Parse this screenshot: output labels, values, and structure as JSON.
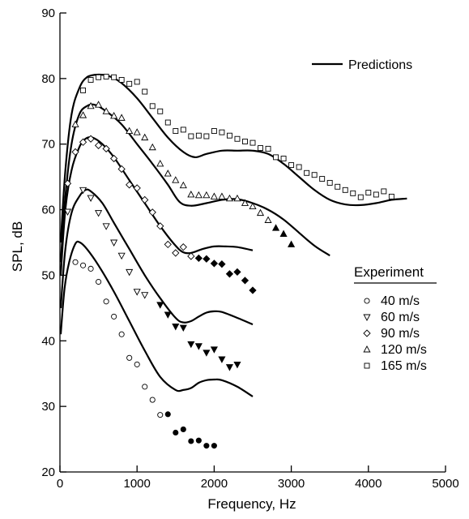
{
  "chart_data": {
    "type": "scatter",
    "xlabel": "Frequency,   Hz",
    "ylabel": "SPL,   dB",
    "xlim": [
      0,
      5000
    ],
    "ylim": [
      20,
      90
    ],
    "xticks": [
      0,
      1000,
      2000,
      3000,
      4000,
      5000
    ],
    "yticks": [
      20,
      30,
      40,
      50,
      60,
      70,
      80,
      90
    ],
    "grid": false,
    "legend": {
      "predictions_label": "Predictions",
      "experiment_title": "Experiment",
      "entries": [
        "40 m/s",
        "60 m/s",
        "90 m/s",
        "120 m/s",
        "165 m/s"
      ],
      "placement": "right"
    },
    "predictions": [
      {
        "points": [
          [
            10,
            41
          ],
          [
            60,
            48
          ],
          [
            120,
            52
          ],
          [
            200,
            54.8
          ],
          [
            260,
            55
          ],
          [
            350,
            54
          ],
          [
            500,
            51.5
          ],
          [
            700,
            47.5
          ],
          [
            900,
            43
          ],
          [
            1100,
            38.5
          ],
          [
            1300,
            34.5
          ],
          [
            1500,
            32.5
          ],
          [
            1600,
            32.5
          ],
          [
            1700,
            32.8
          ],
          [
            1800,
            33.6
          ],
          [
            1900,
            34
          ],
          [
            2000,
            34.1
          ],
          [
            2100,
            34
          ],
          [
            2300,
            33
          ],
          [
            2500,
            31.5
          ]
        ]
      },
      {
        "points": [
          [
            10,
            45
          ],
          [
            70,
            54
          ],
          [
            150,
            59.5
          ],
          [
            250,
            62
          ],
          [
            330,
            63
          ],
          [
            400,
            62.8
          ],
          [
            550,
            61
          ],
          [
            700,
            58
          ],
          [
            900,
            54
          ],
          [
            1100,
            50
          ],
          [
            1300,
            46.5
          ],
          [
            1500,
            43.5
          ],
          [
            1600,
            42.8
          ],
          [
            1700,
            43
          ],
          [
            1800,
            43.7
          ],
          [
            1900,
            44.3
          ],
          [
            2000,
            44.5
          ],
          [
            2100,
            44.4
          ],
          [
            2300,
            43.5
          ],
          [
            2500,
            42.5
          ]
        ]
      },
      {
        "points": [
          [
            10,
            50
          ],
          [
            70,
            60
          ],
          [
            150,
            66
          ],
          [
            250,
            69.5
          ],
          [
            330,
            70.8
          ],
          [
            420,
            71
          ],
          [
            550,
            70
          ],
          [
            700,
            68
          ],
          [
            900,
            64.5
          ],
          [
            1100,
            61
          ],
          [
            1300,
            57.5
          ],
          [
            1500,
            54.5
          ],
          [
            1600,
            53.5
          ],
          [
            1700,
            53.4
          ],
          [
            1850,
            54
          ],
          [
            2000,
            54.4
          ],
          [
            2150,
            54.4
          ],
          [
            2300,
            54.3
          ],
          [
            2500,
            53.8
          ]
        ]
      },
      {
        "points": [
          [
            10,
            52
          ],
          [
            70,
            62
          ],
          [
            150,
            70
          ],
          [
            250,
            74.5
          ],
          [
            350,
            75.8
          ],
          [
            450,
            76
          ],
          [
            600,
            75
          ],
          [
            800,
            73
          ],
          [
            1000,
            70
          ],
          [
            1200,
            67
          ],
          [
            1400,
            63.8
          ],
          [
            1550,
            61.2
          ],
          [
            1700,
            60.6
          ],
          [
            1900,
            61
          ],
          [
            2100,
            61.5
          ],
          [
            2300,
            61.6
          ],
          [
            2500,
            61
          ],
          [
            2700,
            60
          ],
          [
            2900,
            58.5
          ],
          [
            3100,
            56.5
          ],
          [
            3300,
            54.5
          ],
          [
            3500,
            53
          ]
        ]
      },
      {
        "points": [
          [
            10,
            55
          ],
          [
            70,
            66
          ],
          [
            150,
            74.5
          ],
          [
            250,
            78.5
          ],
          [
            350,
            80.2
          ],
          [
            500,
            80.6
          ],
          [
            650,
            80.3
          ],
          [
            800,
            79.3
          ],
          [
            1000,
            77
          ],
          [
            1200,
            74
          ],
          [
            1400,
            71
          ],
          [
            1600,
            68.8
          ],
          [
            1750,
            68
          ],
          [
            1900,
            68.5
          ],
          [
            2100,
            69
          ],
          [
            2300,
            69
          ],
          [
            2500,
            69
          ],
          [
            2700,
            68.5
          ],
          [
            2900,
            67
          ],
          [
            3100,
            65
          ],
          [
            3300,
            63
          ],
          [
            3500,
            61.5
          ],
          [
            3700,
            60.8
          ],
          [
            3900,
            60.7
          ],
          [
            4100,
            61
          ],
          [
            4300,
            61.5
          ],
          [
            4500,
            61.7
          ]
        ]
      }
    ],
    "series": [
      {
        "name": "40 m/s",
        "marker": "circle",
        "open": [
          [
            200,
            52
          ],
          [
            300,
            51.5
          ],
          [
            400,
            51
          ],
          [
            500,
            49
          ],
          [
            600,
            46
          ],
          [
            700,
            43.7
          ],
          [
            800,
            41
          ],
          [
            900,
            37.4
          ],
          [
            1000,
            36.4
          ],
          [
            1100,
            33
          ],
          [
            1200,
            31
          ],
          [
            1300,
            28.7
          ]
        ],
        "filled": [
          [
            1400,
            28.8
          ],
          [
            1500,
            26
          ],
          [
            1600,
            26.5
          ],
          [
            1700,
            24.7
          ],
          [
            1800,
            24.8
          ],
          [
            1900,
            24
          ],
          [
            2000,
            24
          ]
        ]
      },
      {
        "name": "60 m/s",
        "marker": "tri-down",
        "open": [
          [
            100,
            59.7
          ],
          [
            300,
            63
          ],
          [
            400,
            61.8
          ],
          [
            500,
            59.5
          ],
          [
            600,
            57.5
          ],
          [
            700,
            55
          ],
          [
            800,
            53
          ],
          [
            900,
            50.5
          ],
          [
            1000,
            47.5
          ],
          [
            1100,
            47
          ]
        ],
        "filled": [
          [
            1300,
            45.5
          ],
          [
            1400,
            44
          ],
          [
            1500,
            42.2
          ],
          [
            1600,
            42
          ],
          [
            1700,
            39.5
          ],
          [
            1800,
            39.2
          ],
          [
            1900,
            38.2
          ],
          [
            2000,
            38.7
          ],
          [
            2100,
            37.2
          ],
          [
            2200,
            36
          ],
          [
            2300,
            36.4
          ]
        ]
      },
      {
        "name": "90 m/s",
        "marker": "diamond",
        "open": [
          [
            100,
            64
          ],
          [
            200,
            68.8
          ],
          [
            300,
            70.3
          ],
          [
            400,
            70.8
          ],
          [
            500,
            69.8
          ],
          [
            600,
            69.3
          ],
          [
            700,
            67.8
          ],
          [
            800,
            66.2
          ],
          [
            900,
            63.8
          ],
          [
            1000,
            63.3
          ],
          [
            1100,
            61.5
          ],
          [
            1200,
            59.6
          ],
          [
            1300,
            57.5
          ],
          [
            1400,
            54.7
          ],
          [
            1500,
            53.4
          ],
          [
            1600,
            54.3
          ],
          [
            1700,
            52.9
          ]
        ],
        "filled": [
          [
            1800,
            52.6
          ],
          [
            1900,
            52.5
          ],
          [
            2000,
            51.8
          ],
          [
            2100,
            51.7
          ],
          [
            2200,
            50.2
          ],
          [
            2300,
            50.5
          ],
          [
            2400,
            49.2
          ],
          [
            2500,
            47.7
          ]
        ]
      },
      {
        "name": "120 m/s",
        "marker": "tri-up",
        "open": [
          [
            200,
            73
          ],
          [
            300,
            74.4
          ],
          [
            400,
            75.8
          ],
          [
            500,
            76
          ],
          [
            600,
            75
          ],
          [
            700,
            74.3
          ],
          [
            800,
            74
          ],
          [
            900,
            72
          ],
          [
            1000,
            71.8
          ],
          [
            1100,
            71
          ],
          [
            1200,
            69.5
          ],
          [
            1300,
            67
          ],
          [
            1400,
            65.5
          ],
          [
            1500,
            64.5
          ],
          [
            1600,
            63.7
          ],
          [
            1700,
            62.3
          ],
          [
            1800,
            62.2
          ],
          [
            1900,
            62.2
          ],
          [
            2000,
            62
          ],
          [
            2100,
            62
          ],
          [
            2200,
            61.7
          ],
          [
            2300,
            61.7
          ],
          [
            2400,
            61
          ],
          [
            2500,
            60.5
          ],
          [
            2600,
            59.5
          ],
          [
            2700,
            58.4
          ]
        ],
        "filled": [
          [
            2800,
            57.2
          ],
          [
            2900,
            56.3
          ],
          [
            3000,
            54.7
          ]
        ]
      },
      {
        "name": "165 m/s",
        "marker": "square",
        "open": [
          [
            300,
            78.2
          ],
          [
            400,
            79.8
          ],
          [
            500,
            80.2
          ],
          [
            600,
            80.3
          ],
          [
            700,
            80.2
          ],
          [
            800,
            79.8
          ],
          [
            900,
            79.2
          ],
          [
            1000,
            79.5
          ],
          [
            1100,
            78
          ],
          [
            1200,
            75.8
          ],
          [
            1300,
            75
          ],
          [
            1400,
            73.3
          ],
          [
            1500,
            72
          ],
          [
            1600,
            72.2
          ],
          [
            1700,
            71.2
          ],
          [
            1800,
            71.3
          ],
          [
            1900,
            71.2
          ],
          [
            2000,
            72
          ],
          [
            2100,
            71.8
          ],
          [
            2200,
            71.3
          ],
          [
            2300,
            70.8
          ],
          [
            2400,
            70.4
          ],
          [
            2500,
            70.2
          ],
          [
            2600,
            69.4
          ],
          [
            2700,
            69.3
          ],
          [
            2800,
            68
          ],
          [
            2900,
            67.8
          ],
          [
            3000,
            66.8
          ],
          [
            3100,
            66.5
          ],
          [
            3200,
            65.6
          ],
          [
            3300,
            65.3
          ],
          [
            3400,
            64.7
          ],
          [
            3500,
            64.1
          ],
          [
            3600,
            63.5
          ],
          [
            3700,
            63
          ],
          [
            3800,
            62.5
          ],
          [
            3900,
            61.9
          ],
          [
            4000,
            62.6
          ],
          [
            4100,
            62.3
          ],
          [
            4200,
            62.8
          ],
          [
            4300,
            62
          ]
        ],
        "filled": []
      }
    ]
  }
}
